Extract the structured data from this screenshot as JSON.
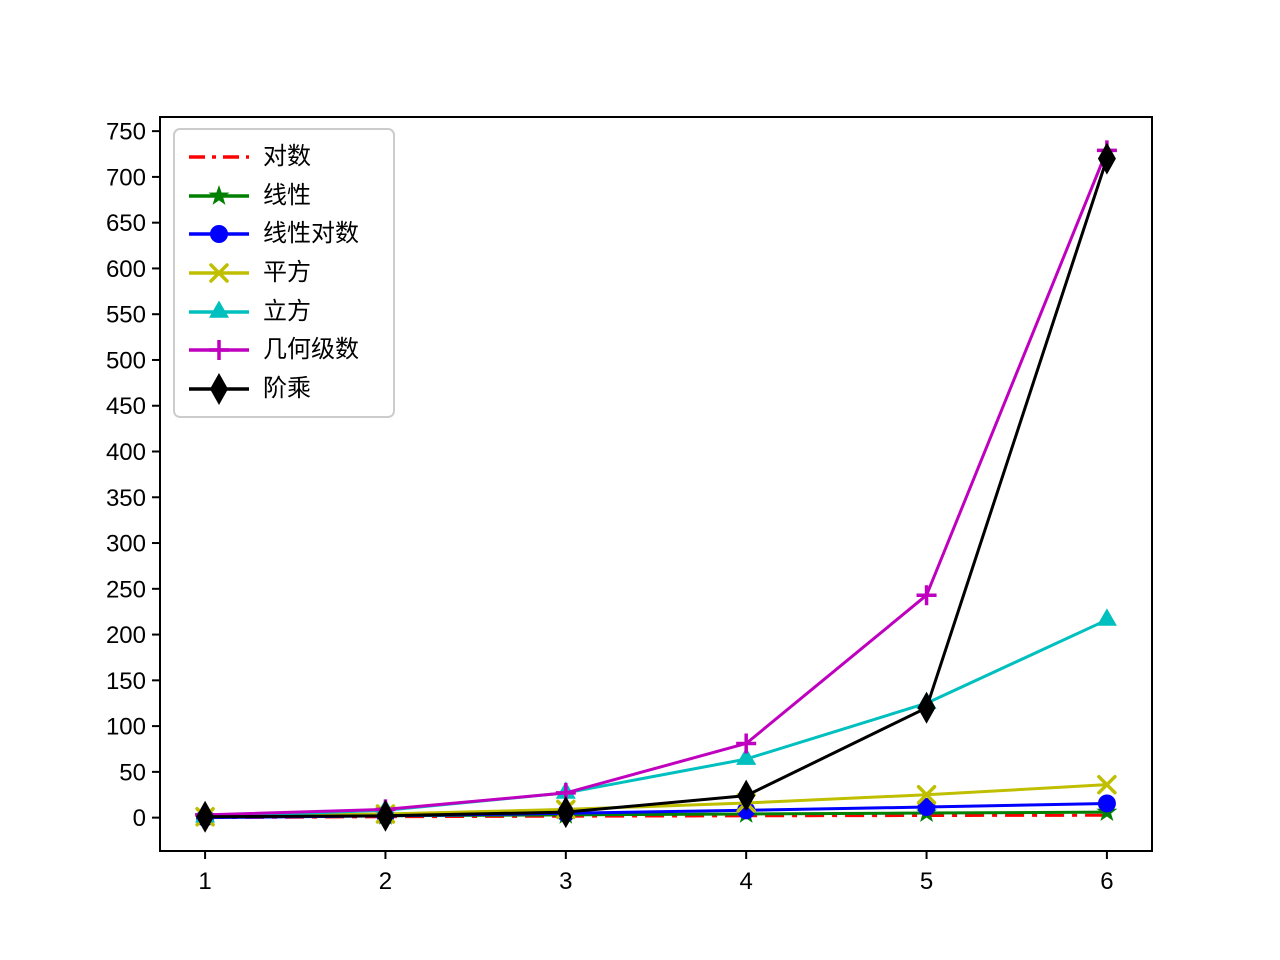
{
  "chart_data": {
    "type": "line",
    "x": [
      1,
      2,
      3,
      4,
      5,
      6
    ],
    "series": [
      {
        "name": "对数",
        "color": "#ff0000",
        "marker": "none",
        "linestyle": "dashdot",
        "values": [
          0,
          1,
          1.585,
          2,
          2.322,
          2.585
        ]
      },
      {
        "name": "线性",
        "color": "#008000",
        "marker": "star",
        "linestyle": "solid",
        "values": [
          1,
          2,
          3,
          4,
          5,
          6
        ]
      },
      {
        "name": "线性对数",
        "color": "#0000ff",
        "marker": "circle",
        "linestyle": "solid",
        "values": [
          0,
          2,
          4.755,
          8,
          11.61,
          15.51
        ]
      },
      {
        "name": "平方",
        "color": "#bfbf00",
        "marker": "x",
        "linestyle": "solid",
        "values": [
          1,
          4,
          9,
          16,
          25,
          36
        ]
      },
      {
        "name": "立方",
        "color": "#00bfbf",
        "marker": "triangle-up",
        "linestyle": "solid",
        "values": [
          1,
          8,
          27,
          64,
          125,
          216
        ]
      },
      {
        "name": "几何级数",
        "color": "#bf00bf",
        "marker": "plus",
        "linestyle": "solid",
        "values": [
          3,
          9,
          27,
          81,
          243,
          729
        ]
      },
      {
        "name": "阶乘",
        "color": "#000000",
        "marker": "thin-diamond",
        "linestyle": "solid",
        "values": [
          1,
          2,
          6,
          24,
          120,
          720
        ]
      }
    ],
    "xticks": [
      1,
      2,
      3,
      4,
      5,
      6
    ],
    "yticks": [
      0,
      50,
      100,
      150,
      200,
      250,
      300,
      350,
      400,
      450,
      500,
      550,
      600,
      650,
      700,
      750
    ],
    "xlim": [
      0.75,
      6.25
    ],
    "ylim": [
      -36.45,
      765.45
    ],
    "grid": false,
    "legend_position": "upper left",
    "title": "",
    "xlabel": "",
    "ylabel": "",
    "axis_color": "#000000",
    "background_color": "#ffffff"
  }
}
